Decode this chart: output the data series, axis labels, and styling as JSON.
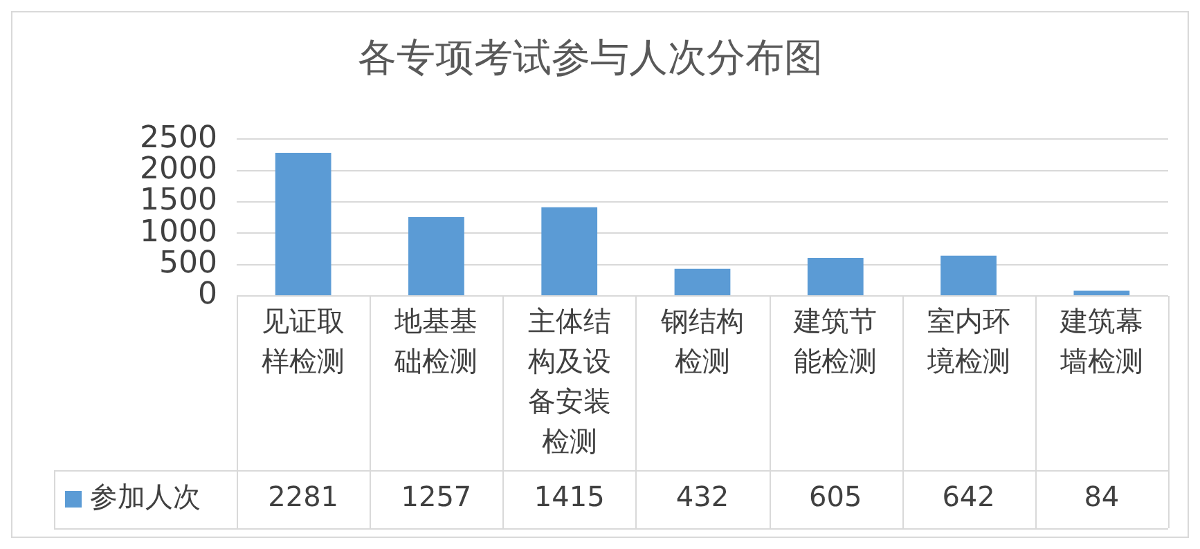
{
  "chart_data": {
    "type": "bar",
    "title": "各专项考试参与人次分布图",
    "categories": [
      "见证取样检测",
      "地基基础检测",
      "主体结构及设备安装检测",
      "钢结构检测",
      "建筑节能检测",
      "室内环境检测",
      "建筑幕墙检测"
    ],
    "series": [
      {
        "name": "参加人次",
        "color": "#5b9bd5",
        "values": [
          2281,
          1257,
          1415,
          432,
          605,
          642,
          84
        ]
      }
    ],
    "ylim": [
      0,
      2500
    ],
    "yticks": [
      0,
      500,
      1000,
      1500,
      2000,
      2500
    ],
    "grid": "y",
    "legend": "bottom",
    "data_labels": true
  }
}
